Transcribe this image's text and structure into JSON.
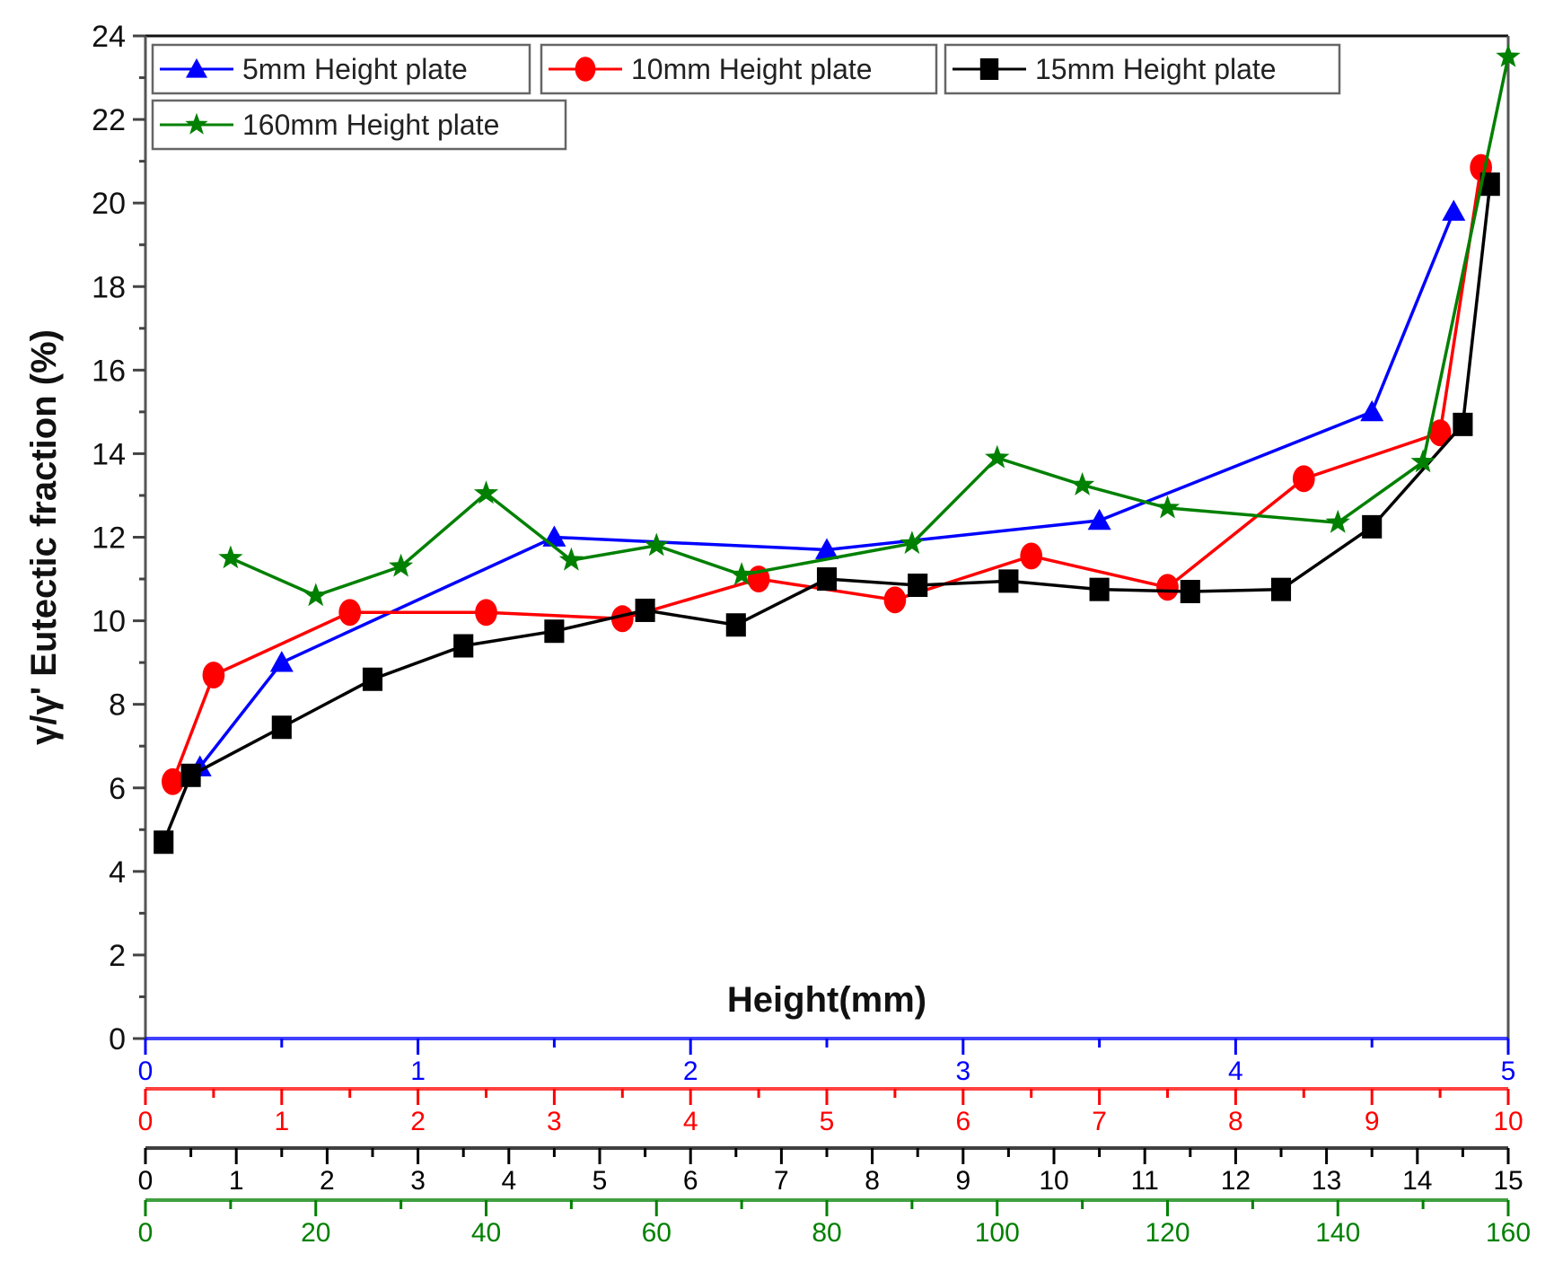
{
  "chart_data": {
    "type": "line",
    "title": "",
    "ylabel": "γ/γ' Eutectic fraction (%)",
    "xlabel": "Height(mm)",
    "ylim": [
      0,
      24
    ],
    "yticks": [
      0,
      2,
      4,
      6,
      8,
      10,
      12,
      14,
      16,
      18,
      20,
      22,
      24
    ],
    "grid": false,
    "legend_position": "top-left inside, 3 columns + 1 row",
    "x_axes": [
      {
        "series": "5mm  Height plate",
        "color": "#0000ff",
        "range": [
          0,
          5
        ],
        "ticks": [
          0,
          1,
          2,
          3,
          4,
          5
        ]
      },
      {
        "series": "10mm  Height plate",
        "color": "#ff0000",
        "range": [
          0,
          10
        ],
        "ticks": [
          0,
          1,
          2,
          3,
          4,
          5,
          6,
          7,
          8,
          9,
          10
        ]
      },
      {
        "series": "15mm  Height plate",
        "color": "#000000",
        "range": [
          0,
          15
        ],
        "ticks": [
          0,
          1,
          2,
          3,
          4,
          5,
          6,
          7,
          8,
          9,
          10,
          11,
          12,
          13,
          14,
          15
        ]
      },
      {
        "series": "160mm  Height plate",
        "color": "#008000",
        "range": [
          0,
          160
        ],
        "ticks": [
          0,
          20,
          40,
          60,
          80,
          100,
          120,
          140,
          160
        ]
      }
    ],
    "series": [
      {
        "name": "5mm  Height plate",
        "color": "#0000ff",
        "marker": "triangle",
        "x": [
          0.2,
          0.5,
          1.5,
          2.5,
          3.5,
          4.5,
          4.8
        ],
        "y": [
          6.5,
          9.0,
          12.0,
          11.7,
          12.4,
          15.0,
          19.8
        ]
      },
      {
        "name": "10mm  Height plate",
        "color": "#ff0000",
        "marker": "circle",
        "x": [
          0.2,
          0.5,
          1.5,
          2.5,
          3.5,
          4.5,
          5.5,
          6.5,
          7.5,
          8.5,
          9.5,
          9.8
        ],
        "y": [
          6.15,
          8.7,
          10.2,
          10.2,
          10.05,
          11.0,
          10.5,
          11.55,
          10.8,
          13.4,
          14.5,
          20.85
        ]
      },
      {
        "name": "15mm  Height plate",
        "color": "#000000",
        "marker": "square",
        "x": [
          0.2,
          0.5,
          1.5,
          2.5,
          3.5,
          4.5,
          5.5,
          6.5,
          7.5,
          8.5,
          9.5,
          10.5,
          11.5,
          12.5,
          13.5,
          14.5,
          14.8
        ],
        "y": [
          4.7,
          6.3,
          7.45,
          8.6,
          9.4,
          9.75,
          10.25,
          9.9,
          11.0,
          10.85,
          10.95,
          10.75,
          10.7,
          10.75,
          12.25,
          14.7,
          20.45
        ]
      },
      {
        "name": "160mm  Height plate",
        "color": "#008000",
        "marker": "star",
        "x": [
          10,
          20,
          30,
          40,
          50,
          60,
          70,
          90,
          100,
          110,
          120,
          140,
          150,
          160
        ],
        "y": [
          11.5,
          10.6,
          11.3,
          13.05,
          11.45,
          11.8,
          11.1,
          11.85,
          13.9,
          13.25,
          12.7,
          12.35,
          13.8,
          23.5
        ]
      }
    ]
  },
  "legend": {
    "items": [
      {
        "label": "5mm  Height plate",
        "color": "#0000ff",
        "marker": "triangle"
      },
      {
        "label": "10mm  Height plate",
        "color": "#ff0000",
        "marker": "circle"
      },
      {
        "label": "15mm  Height plate",
        "color": "#000000",
        "marker": "square"
      },
      {
        "label": "160mm  Height plate",
        "color": "#008000",
        "marker": "star"
      }
    ]
  }
}
